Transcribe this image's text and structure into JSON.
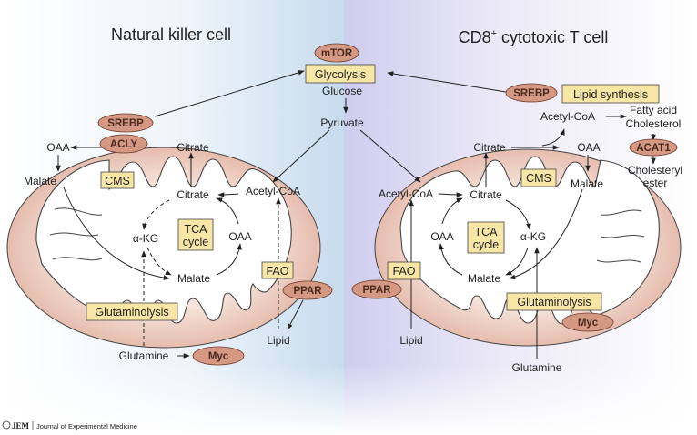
{
  "panels": {
    "left_title": "Natural killer cell",
    "right_title_main": "CD8",
    "right_title_sup": "+",
    "right_title_rest": " cytotoxic T cell"
  },
  "top": {
    "mtor": "mTOR",
    "glycolysis": "Glycolysis",
    "glucose": "Glucose",
    "pyruvate": "Pyruvate"
  },
  "left": {
    "srebp": "SREBP",
    "acly": "ACLY",
    "oaa_outside": "OAA",
    "citrate_outside": "Citrate",
    "malate_outside": "Malate",
    "cms": "CMS",
    "citrate_inner": "Citrate",
    "acetyl_coa": "Acetyl-CoA",
    "akg": "α-KG",
    "tca_line1": "TCA",
    "tca_line2": "cycle",
    "oaa_inner": "OAA",
    "malate_inner": "Malate",
    "fao": "FAO",
    "ppar": "PPAR",
    "glutaminolysis": "Glutaminolysis",
    "glutamine": "Glutamine",
    "myc": "Myc",
    "lipid": "Lipid"
  },
  "right": {
    "srebp": "SREBP",
    "lipid_synthesis": "Lipid synthesis",
    "acetyl_coa_outside": "Acetyl-CoA",
    "fatty_acid": "Fatty acid",
    "cholesterol": "Cholesterol",
    "acat1": "ACAT1",
    "cholesteryl1": "Cholesteryl",
    "cholesteryl2": "ester",
    "citrate_outside": "Citrate",
    "oaa_outside": "OAA",
    "cms": "CMS",
    "malate_outside": "Malate",
    "acetyl_coa_inner": "Acetyl-CoA",
    "citrate_inner": "Citrate",
    "oaa_inner": "OAA",
    "tca_line1": "TCA",
    "tca_line2": "cycle",
    "akg": "α-KG",
    "malate_inner": "Malate",
    "fao": "FAO",
    "ppar": "PPAR",
    "glutaminolysis": "Glutaminolysis",
    "myc": "Myc",
    "lipid": "Lipid",
    "glutamine": "Glutamine"
  },
  "footer": {
    "logo": "JEM",
    "journal": "Journal of Experimental Medicine"
  },
  "colors": {
    "box_fill": "#f7e6a6",
    "oval_fill": "#d49883",
    "left_bg": "#cfe0ef",
    "right_bg": "#d4d2ee",
    "mito_fill": "#f2d6cc"
  }
}
